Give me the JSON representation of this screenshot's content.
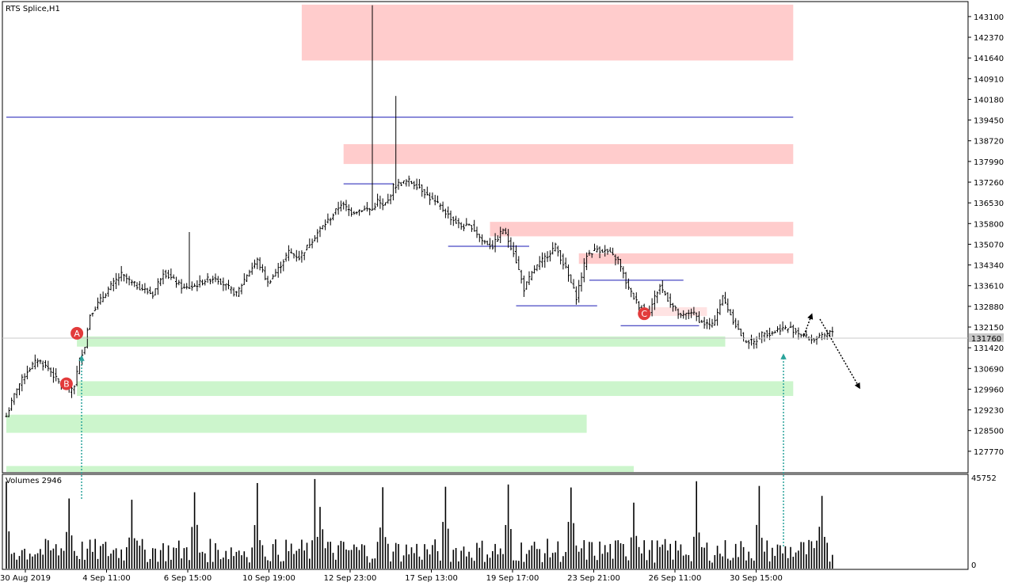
{
  "chart_data": {
    "type": "ohlc",
    "title": "RTS Splice,H1",
    "current_price": "131760",
    "price_axis": {
      "ylim": [
        127040,
        143600
      ],
      "ticks": [
        "143100",
        "142370",
        "141640",
        "140910",
        "140180",
        "139450",
        "138720",
        "137990",
        "137260",
        "136530",
        "135800",
        "135070",
        "134340",
        "133610",
        "132880",
        "132150",
        "131420",
        "130690",
        "129960",
        "129230",
        "128500",
        "127770"
      ]
    },
    "time_axis": {
      "labels": [
        "30 Aug 2019",
        "4 Sep 11:00",
        "6 Sep 15:00",
        "10 Sep 19:00",
        "12 Sep 23:00",
        "17 Sep 13:00",
        "19 Sep 17:00",
        "23 Sep 21:00",
        "26 Sep 11:00",
        "30 Sep 15:00"
      ],
      "bar_count": 248
    },
    "price_path": [
      [
        0,
        129000
      ],
      [
        4,
        130000
      ],
      [
        8,
        130600
      ],
      [
        12,
        131000
      ],
      [
        16,
        130700
      ],
      [
        20,
        130200
      ],
      [
        24,
        129900
      ],
      [
        26,
        130100
      ],
      [
        28,
        131000
      ],
      [
        30,
        131500
      ],
      [
        32,
        132600
      ],
      [
        36,
        133100
      ],
      [
        40,
        133600
      ],
      [
        44,
        134000
      ],
      [
        48,
        133700
      ],
      [
        52,
        133500
      ],
      [
        56,
        133300
      ],
      [
        60,
        134100
      ],
      [
        64,
        133800
      ],
      [
        68,
        133500
      ],
      [
        72,
        133600
      ],
      [
        76,
        133800
      ],
      [
        80,
        133900
      ],
      [
        84,
        133600
      ],
      [
        88,
        133300
      ],
      [
        92,
        134000
      ],
      [
        96,
        134500
      ],
      [
        100,
        133700
      ],
      [
        104,
        134200
      ],
      [
        108,
        134800
      ],
      [
        112,
        134600
      ],
      [
        116,
        135100
      ],
      [
        120,
        135600
      ],
      [
        124,
        136000
      ],
      [
        128,
        136500
      ],
      [
        132,
        136200
      ],
      [
        136,
        136300
      ],
      [
        140,
        136300
      ],
      [
        142,
        136600
      ],
      [
        144,
        136400
      ],
      [
        146,
        136600
      ],
      [
        148,
        137100
      ],
      [
        150,
        137200
      ],
      [
        154,
        137300
      ],
      [
        158,
        137100
      ],
      [
        162,
        136700
      ],
      [
        166,
        136400
      ],
      [
        170,
        136000
      ],
      [
        174,
        135700
      ],
      [
        178,
        135700
      ],
      [
        182,
        135200
      ],
      [
        186,
        135000
      ],
      [
        190,
        135600
      ],
      [
        194,
        134800
      ],
      [
        198,
        133500
      ],
      [
        202,
        134200
      ],
      [
        206,
        134600
      ],
      [
        210,
        135000
      ],
      [
        214,
        134200
      ],
      [
        218,
        133200
      ],
      [
        222,
        134700
      ],
      [
        226,
        134900
      ],
      [
        230,
        134800
      ],
      [
        234,
        134500
      ],
      [
        238,
        133500
      ],
      [
        242,
        132900
      ],
      [
        246,
        132700
      ],
      [
        248,
        133200
      ],
      [
        250,
        133600
      ],
      [
        254,
        133000
      ],
      [
        258,
        132500
      ],
      [
        262,
        132700
      ],
      [
        266,
        132300
      ],
      [
        270,
        132200
      ],
      [
        274,
        133200
      ],
      [
        278,
        132400
      ],
      [
        282,
        131700
      ],
      [
        286,
        131600
      ],
      [
        290,
        132000
      ],
      [
        292,
        131900
      ],
      [
        296,
        132100
      ],
      [
        300,
        132100
      ],
      [
        304,
        131900
      ],
      [
        308,
        131700
      ],
      [
        312,
        131800
      ],
      [
        316,
        132000
      ]
    ],
    "price_path_note": "",
    "volume": {
      "label": "Volumes 2946",
      "max": "45752",
      "min": "0"
    },
    "zones": [
      {
        "kind": "supply",
        "from_bar": 113,
        "to_bar": 301,
        "low": 141550,
        "high": 143520
      },
      {
        "kind": "supply",
        "from_bar": 129,
        "to_bar": 301,
        "low": 137900,
        "high": 138600
      },
      {
        "kind": "supply",
        "from_bar": 185,
        "to_bar": 301,
        "low": 135350,
        "high": 135860
      },
      {
        "kind": "supply",
        "from_bar": 219,
        "to_bar": 301,
        "low": 134380,
        "high": 134750
      },
      {
        "kind": "supply-light",
        "from_bar": 242,
        "to_bar": 268,
        "low": 132540,
        "high": 132850
      },
      {
        "kind": "demand",
        "from_bar": 27,
        "to_bar": 275,
        "low": 131460,
        "high": 131820
      },
      {
        "kind": "demand",
        "from_bar": 27,
        "to_bar": 301,
        "low": 129720,
        "high": 130240
      },
      {
        "kind": "demand",
        "from_bar": 0,
        "to_bar": 222,
        "low": 128420,
        "high": 129060
      },
      {
        "kind": "demand",
        "from_bar": 0,
        "to_bar": 240,
        "low": 127040,
        "high": 127250
      }
    ],
    "levels": [
      {
        "from_bar": 0,
        "to_bar": 301,
        "price": 139550
      },
      {
        "from_bar": 129,
        "to_bar": 148,
        "price": 137200
      },
      {
        "from_bar": 169,
        "to_bar": 200,
        "price": 135000
      },
      {
        "from_bar": 195,
        "to_bar": 226,
        "price": 132900
      },
      {
        "from_bar": 223,
        "to_bar": 259,
        "price": 133800
      },
      {
        "from_bar": 235,
        "to_bar": 265,
        "price": 132200
      }
    ],
    "markers": [
      {
        "label": "A",
        "bar": 27,
        "price": 131930
      },
      {
        "label": "B",
        "bar": 23,
        "price": 130150
      },
      {
        "label": "C",
        "bar": 244,
        "price": 132620
      }
    ],
    "colors": {
      "supply": "#ffcccc",
      "supply_light": "#ffe3e3",
      "demand": "#ccf5cc",
      "level": "#1a1ab4",
      "marker": "#e23b3b",
      "arrow_teal": "#2aa39b",
      "bars": "#000000"
    }
  }
}
